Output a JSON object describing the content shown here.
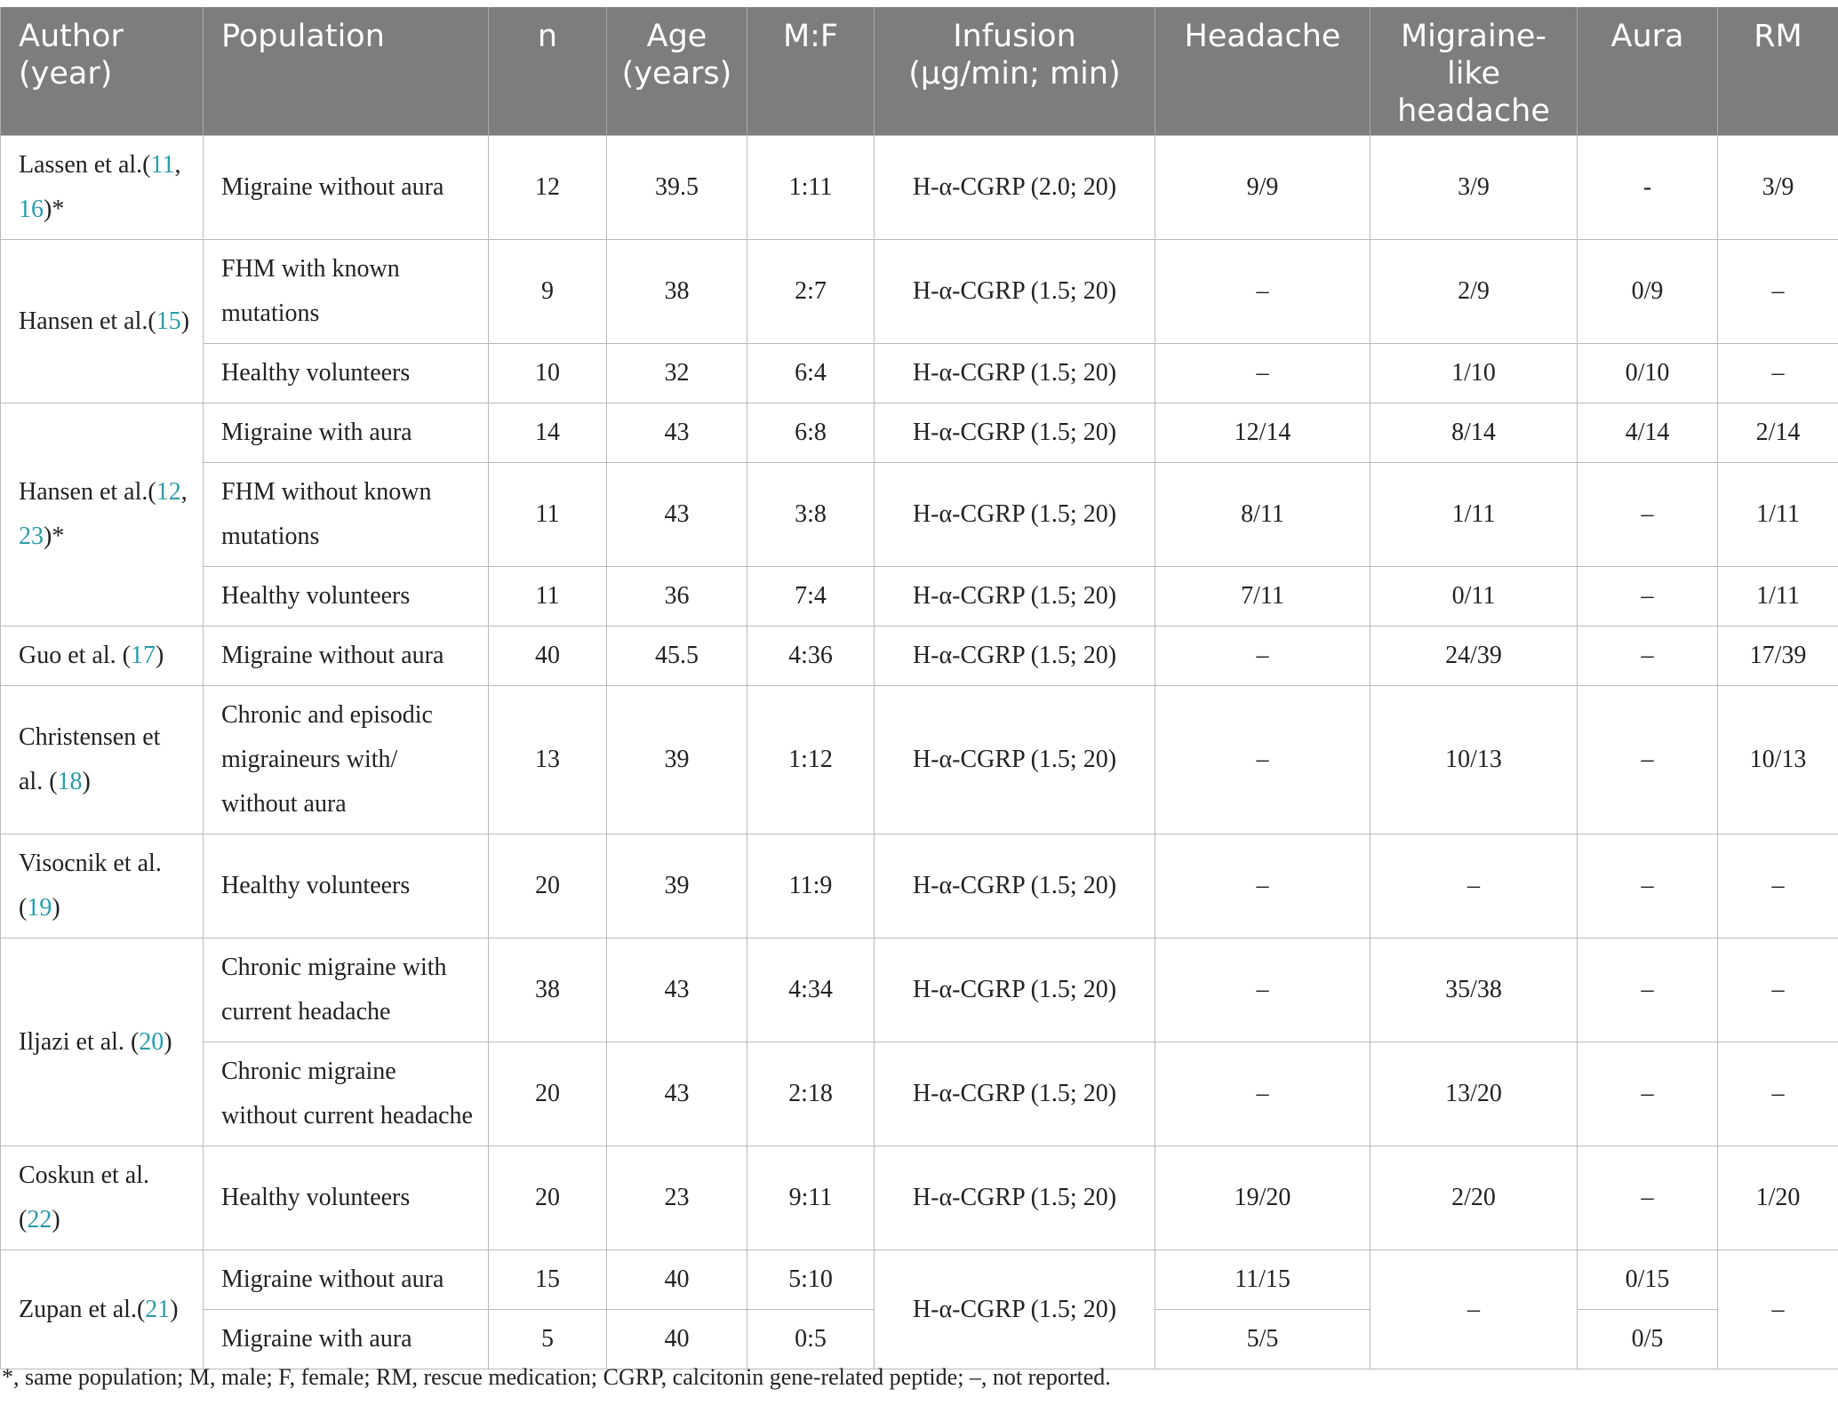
{
  "headers": [
    "Author (year)",
    "Population",
    "n",
    "Age (years)",
    "M:F",
    "Infusion (μg/min; min)",
    "Headache",
    "Migraine-like headache",
    "Aura",
    "RM"
  ],
  "studies": {
    "lassen": {
      "author": {
        "text": "Lassen et al.",
        "refs": [
          [
            "(",
            ""
          ],
          [
            "11",
            "ref"
          ],
          [
            ", ",
            ""
          ],
          [
            "16",
            "ref"
          ],
          [
            ")*",
            ""
          ]
        ]
      },
      "rows": [
        {
          "population": "Migraine without aura",
          "n": "12",
          "age": "39.5",
          "mf": "1:11",
          "infusion": "H-α-CGRP (2.0; 20)",
          "headache": "9/9",
          "migraine": "3/9",
          "aura": "-",
          "rm": "3/9"
        }
      ]
    },
    "hansen15": {
      "author": {
        "text": "Hansen et al.",
        "refs": [
          [
            "(",
            ""
          ],
          [
            "15",
            "ref"
          ],
          [
            ")",
            ""
          ]
        ]
      },
      "rows": [
        {
          "population": "FHM with known mutations",
          "n": "9",
          "age": "38",
          "mf": "2:7",
          "infusion": "H-α-CGRP (1.5; 20)",
          "headache": "–",
          "migraine": "2/9",
          "aura": "0/9",
          "rm": "–"
        },
        {
          "population": "Healthy volunteers",
          "n": "10",
          "age": "32",
          "mf": "6:4",
          "infusion": "H-α-CGRP (1.5; 20)",
          "headache": "–",
          "migraine": "1/10",
          "aura": "0/10",
          "rm": "–"
        }
      ]
    },
    "hansen12": {
      "author": {
        "text": "Hansen et al.",
        "refs": [
          [
            "(",
            ""
          ],
          [
            "12",
            "ref"
          ],
          [
            ", ",
            ""
          ],
          [
            "23",
            "ref"
          ],
          [
            ")*",
            ""
          ]
        ]
      },
      "rows": [
        {
          "population": "Migraine with aura",
          "n": "14",
          "age": "43",
          "mf": "6:8",
          "infusion": "H-α-CGRP (1.5; 20)",
          "headache": "12/14",
          "migraine": "8/14",
          "aura": "4/14",
          "rm": "2/14"
        },
        {
          "population": "FHM without known mutations",
          "n": "11",
          "age": "43",
          "mf": "3:8",
          "infusion": "H-α-CGRP (1.5; 20)",
          "headache": "8/11",
          "migraine": "1/11",
          "aura": "–",
          "rm": "1/11"
        },
        {
          "population": "Healthy volunteers",
          "n": "11",
          "age": "36",
          "mf": "7:4",
          "infusion": "H-α-CGRP (1.5; 20)",
          "headache": "7/11",
          "migraine": "0/11",
          "aura": "–",
          "rm": "1/11"
        }
      ]
    },
    "guo": {
      "author": {
        "text": "Guo et al.",
        "refs": [
          [
            " (",
            ""
          ],
          [
            "17",
            "ref"
          ],
          [
            ")",
            ""
          ]
        ]
      },
      "rows": [
        {
          "population": "Migraine without aura",
          "n": "40",
          "age": "45.5",
          "mf": "4:36",
          "infusion": "H-α-CGRP (1.5; 20)",
          "headache": "–",
          "migraine": "24/39",
          "aura": "–",
          "rm": "17/39"
        }
      ]
    },
    "christensen": {
      "author": {
        "text": "Christensen et al.",
        "refs": [
          [
            " (",
            ""
          ],
          [
            "18",
            "ref"
          ],
          [
            ")",
            ""
          ]
        ]
      },
      "rows": [
        {
          "population": "Chronic and episodic migraineurs with/ without aura",
          "n": "13",
          "age": "39",
          "mf": "1:12",
          "infusion": "H-α-CGRP (1.5; 20)",
          "headache": "–",
          "migraine": "10/13",
          "aura": "–",
          "rm": "10/13"
        }
      ]
    },
    "visocnik": {
      "author": {
        "text": "Visocnik et al.",
        "refs": [
          [
            "(",
            ""
          ],
          [
            "19",
            "ref"
          ],
          [
            ")",
            ""
          ]
        ]
      },
      "rows": [
        {
          "population": "Healthy volunteers",
          "n": "20",
          "age": "39",
          "mf": "11:9",
          "infusion": "H-α-CGRP (1.5; 20)",
          "headache": "–",
          "migraine": "–",
          "aura": "–",
          "rm": "–"
        }
      ]
    },
    "iljazi": {
      "author": {
        "text": "Iljazi et al.",
        "refs": [
          [
            " (",
            ""
          ],
          [
            "20",
            "ref"
          ],
          [
            ")",
            ""
          ]
        ]
      },
      "rows": [
        {
          "population": "Chronic migraine with current headache",
          "n": "38",
          "age": "43",
          "mf": "4:34",
          "infusion": "H-α-CGRP (1.5; 20)",
          "headache": "–",
          "migraine": "35/38",
          "aura": "–",
          "rm": "–"
        },
        {
          "population": "Chronic migraine without current headache",
          "n": "20",
          "age": "43",
          "mf": "2:18",
          "infusion": "H-α-CGRP (1.5; 20)",
          "headache": "–",
          "migraine": "13/20",
          "aura": "–",
          "rm": "–"
        }
      ]
    },
    "coskun": {
      "author": {
        "text": "Coskun et al.",
        "refs": [
          [
            "(",
            ""
          ],
          [
            "22",
            "ref"
          ],
          [
            ")",
            ""
          ]
        ]
      },
      "rows": [
        {
          "population": "Healthy volunteers",
          "n": "20",
          "age": "23",
          "mf": "9:11",
          "infusion": "H-α-CGRP (1.5; 20)",
          "headache": "19/20",
          "migraine": "2/20",
          "aura": "–",
          "rm": "1/20"
        }
      ]
    },
    "zupan": {
      "author": {
        "text": "Zupan et al.",
        "refs": [
          [
            "(",
            ""
          ],
          [
            "21",
            "ref"
          ],
          [
            ")",
            ""
          ]
        ]
      },
      "shared": {
        "infusion": "H-α-CGRP (1.5; 20)",
        "migraine": "–",
        "rm": "–"
      },
      "rows": [
        {
          "population": "Migraine without aura",
          "n": "15",
          "age": "40",
          "mf": "5:10",
          "headache": "11/15",
          "aura": "0/15"
        },
        {
          "population": "Migraine with aura",
          "n": "5",
          "age": "40",
          "mf": "0:5",
          "headache": "5/5",
          "aura": "0/5"
        }
      ]
    }
  },
  "footnote": "*, same population; M, male; F, female; RM, rescue medication; CGRP, calcitonin gene-related peptide; –, not reported."
}
